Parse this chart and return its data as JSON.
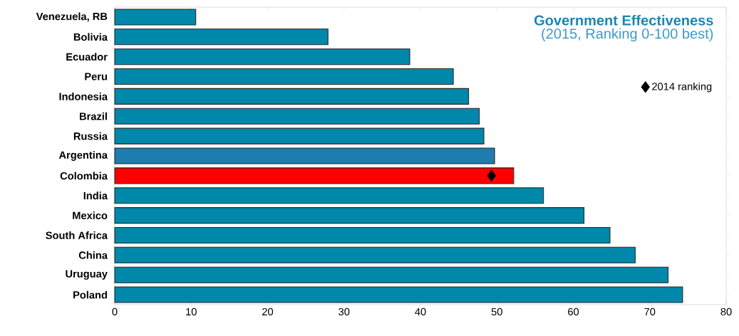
{
  "chart_data": {
    "type": "bar",
    "orientation": "horizontal",
    "title": "Government Effectiveness",
    "subtitle": "(2015, Ranking 0-100 best)",
    "categories": [
      "Venezuela, RB",
      "Bolivia",
      "Ecuador",
      "Peru",
      "Indonesia",
      "Brazil",
      "Russia",
      "Argentina",
      "Colombia",
      "India",
      "Mexico",
      "South Africa",
      "China",
      "Uruguay",
      "Poland"
    ],
    "series": [
      {
        "values": [
          10.6,
          27.9,
          38.6,
          44.3,
          46.3,
          47.7,
          48.3,
          49.7,
          52.2,
          56.1,
          61.4,
          64.8,
          68.1,
          72.4,
          74.3
        ],
        "colors": [
          "#0088ab",
          "#0088ab",
          "#0088ab",
          "#0088ab",
          "#0088ab",
          "#0088ab",
          "#0088ab",
          "#1f7cae",
          "#ff0000",
          "#0088ab",
          "#0088ab",
          "#0088ab",
          "#0088ab",
          "#0088ab",
          "#0088ab"
        ]
      },
      {
        "type": "scatter",
        "name": "2014 ranking",
        "color": "#000000",
        "marker": "diamond",
        "values": [
          null,
          null,
          null,
          null,
          null,
          null,
          null,
          null,
          49.3,
          null,
          null,
          null,
          null,
          null,
          null
        ]
      }
    ],
    "xlim": [
      0,
      80
    ],
    "xticks": [
      0,
      10,
      20,
      30,
      40,
      50,
      60,
      70,
      80
    ],
    "legend": "top right"
  }
}
